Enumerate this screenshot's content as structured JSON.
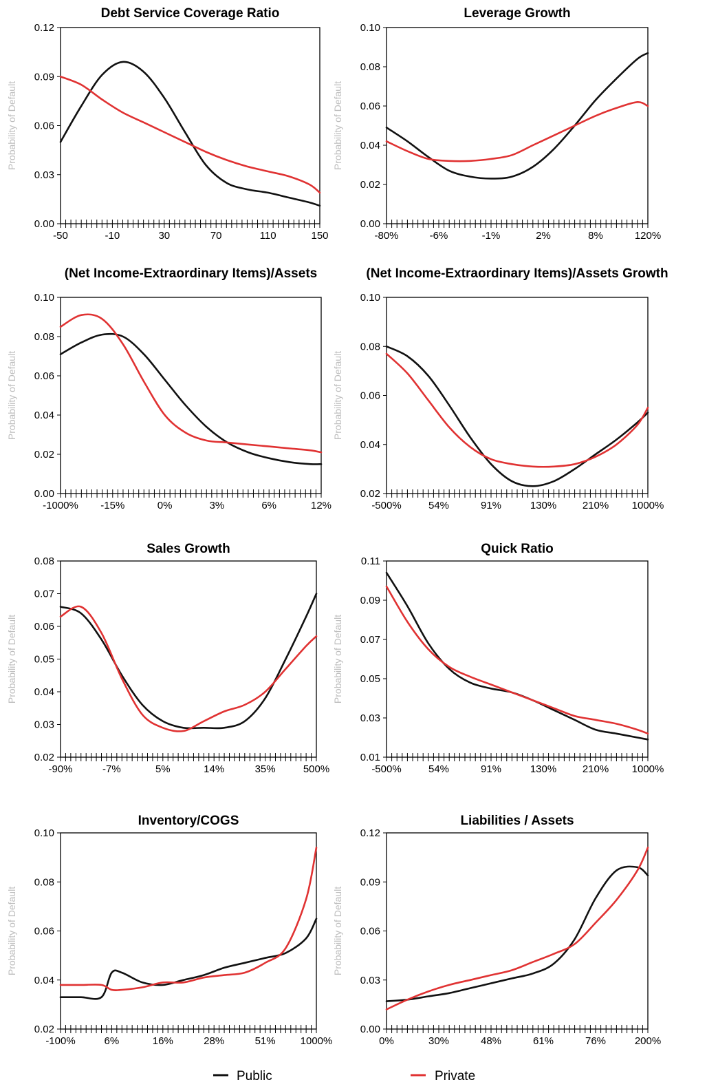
{
  "legend": {
    "public_label": "Public",
    "private_label": "Private"
  },
  "colors": {
    "public": "#111111",
    "private": "#e03232",
    "axis_label": "#bdbdbd"
  },
  "chart_data": [
    {
      "type": "line",
      "title": "Debt Service Coverage Ratio",
      "ylabel": "Probability of Default",
      "ylim": [
        0,
        0.12
      ],
      "yticks": [
        "0.00",
        "0.03",
        "0.06",
        "0.09",
        "0.12"
      ],
      "xticks": [
        "-50",
        "-10",
        "30",
        "70",
        "110",
        "150"
      ],
      "x": [
        0,
        0.08,
        0.16,
        0.24,
        0.32,
        0.4,
        0.48,
        0.56,
        0.64,
        0.72,
        0.8,
        0.88,
        0.96,
        1
      ],
      "series": [
        {
          "name": "Public",
          "values": [
            0.05,
            0.072,
            0.091,
            0.099,
            0.093,
            0.077,
            0.056,
            0.036,
            0.025,
            0.021,
            0.019,
            0.016,
            0.013,
            0.011
          ]
        },
        {
          "name": "Private",
          "values": [
            0.09,
            0.085,
            0.076,
            0.068,
            0.062,
            0.056,
            0.05,
            0.044,
            0.039,
            0.035,
            0.032,
            0.029,
            0.024,
            0.019
          ]
        }
      ]
    },
    {
      "type": "line",
      "title": "Leverage Growth",
      "ylabel": "Probability of Default",
      "ylim": [
        0,
        0.1
      ],
      "yticks": [
        "0.00",
        "0.02",
        "0.04",
        "0.06",
        "0.08",
        "0.10"
      ],
      "xticks": [
        "-80%",
        "-6%",
        "-1%",
        "2%",
        "8%",
        "120%"
      ],
      "x": [
        0,
        0.08,
        0.16,
        0.24,
        0.32,
        0.4,
        0.48,
        0.56,
        0.64,
        0.72,
        0.8,
        0.88,
        0.96,
        1
      ],
      "series": [
        {
          "name": "Public",
          "values": [
            0.049,
            0.042,
            0.034,
            0.027,
            0.024,
            0.023,
            0.024,
            0.029,
            0.038,
            0.05,
            0.063,
            0.074,
            0.084,
            0.087
          ]
        },
        {
          "name": "Private",
          "values": [
            0.042,
            0.037,
            0.033,
            0.032,
            0.032,
            0.033,
            0.035,
            0.04,
            0.045,
            0.05,
            0.055,
            0.059,
            0.062,
            0.06
          ]
        }
      ]
    },
    {
      "type": "line",
      "title": "(Net Income-Extraordinary Items)/Assets",
      "ylabel": "Probability of Default",
      "ylim": [
        0,
        0.1
      ],
      "yticks": [
        "0.00",
        "0.02",
        "0.04",
        "0.06",
        "0.08",
        "0.10"
      ],
      "xticks": [
        "-1000%",
        "-15%",
        "0%",
        "3%",
        "6%",
        "12%"
      ],
      "x": [
        0,
        0.08,
        0.16,
        0.24,
        0.32,
        0.4,
        0.48,
        0.56,
        0.64,
        0.72,
        0.8,
        0.88,
        0.96,
        1
      ],
      "series": [
        {
          "name": "Public",
          "values": [
            0.071,
            0.077,
            0.081,
            0.08,
            0.071,
            0.058,
            0.045,
            0.034,
            0.026,
            0.021,
            0.018,
            0.016,
            0.015,
            0.015
          ]
        },
        {
          "name": "Private",
          "values": [
            0.085,
            0.091,
            0.089,
            0.076,
            0.057,
            0.04,
            0.031,
            0.027,
            0.026,
            0.025,
            0.024,
            0.023,
            0.022,
            0.021
          ]
        }
      ]
    },
    {
      "type": "line",
      "title": "(Net Income-Extraordinary Items)/Assets Growth",
      "ylabel": "Probability of Default",
      "ylim": [
        0.02,
        0.1
      ],
      "yticks": [
        "0.02",
        "0.04",
        "0.06",
        "0.08",
        "0.10"
      ],
      "xticks": [
        "-500%",
        "54%",
        "91%",
        "130%",
        "210%",
        "1000%"
      ],
      "x": [
        0,
        0.08,
        0.16,
        0.24,
        0.32,
        0.4,
        0.48,
        0.56,
        0.64,
        0.72,
        0.8,
        0.88,
        0.96,
        1
      ],
      "series": [
        {
          "name": "Public",
          "values": [
            0.08,
            0.076,
            0.068,
            0.056,
            0.043,
            0.032,
            0.025,
            0.023,
            0.025,
            0.03,
            0.036,
            0.042,
            0.049,
            0.053
          ]
        },
        {
          "name": "Private",
          "values": [
            0.077,
            0.069,
            0.058,
            0.047,
            0.039,
            0.034,
            0.032,
            0.031,
            0.031,
            0.032,
            0.035,
            0.04,
            0.048,
            0.055
          ]
        }
      ]
    },
    {
      "type": "line",
      "title": "Sales Growth",
      "ylabel": "Probability of Default",
      "ylim": [
        0.02,
        0.08
      ],
      "yticks": [
        "0.02",
        "0.03",
        "0.04",
        "0.05",
        "0.06",
        "0.07",
        "0.08"
      ],
      "xticks": [
        "-90%",
        "-7%",
        "5%",
        "14%",
        "35%",
        "500%"
      ],
      "x": [
        0,
        0.08,
        0.16,
        0.24,
        0.32,
        0.4,
        0.48,
        0.56,
        0.64,
        0.72,
        0.8,
        0.88,
        0.96,
        1
      ],
      "series": [
        {
          "name": "Public",
          "values": [
            0.066,
            0.064,
            0.056,
            0.045,
            0.036,
            0.031,
            0.029,
            0.029,
            0.029,
            0.031,
            0.038,
            0.05,
            0.063,
            0.07
          ]
        },
        {
          "name": "Private",
          "values": [
            0.063,
            0.066,
            0.058,
            0.044,
            0.033,
            0.029,
            0.028,
            0.031,
            0.034,
            0.036,
            0.04,
            0.047,
            0.054,
            0.057
          ]
        }
      ]
    },
    {
      "type": "line",
      "title": "Quick Ratio",
      "ylabel": "Probability of Default",
      "ylim": [
        0.01,
        0.11
      ],
      "yticks": [
        "0.01",
        "0.03",
        "0.05",
        "0.07",
        "0.09",
        "0.11"
      ],
      "xticks": [
        "-500%",
        "54%",
        "91%",
        "130%",
        "210%",
        "1000%"
      ],
      "x": [
        0,
        0.08,
        0.16,
        0.24,
        0.32,
        0.4,
        0.48,
        0.56,
        0.64,
        0.72,
        0.8,
        0.88,
        0.96,
        1
      ],
      "series": [
        {
          "name": "Public",
          "values": [
            0.104,
            0.087,
            0.068,
            0.055,
            0.048,
            0.045,
            0.043,
            0.039,
            0.034,
            0.029,
            0.024,
            0.022,
            0.02,
            0.019
          ]
        },
        {
          "name": "Private",
          "values": [
            0.097,
            0.079,
            0.065,
            0.056,
            0.051,
            0.047,
            0.043,
            0.039,
            0.035,
            0.031,
            0.029,
            0.027,
            0.024,
            0.022
          ]
        }
      ]
    },
    {
      "type": "line",
      "title": "Inventory/COGS",
      "ylabel": "Probability of Default",
      "ylim": [
        0.02,
        0.1
      ],
      "yticks": [
        "0.02",
        "0.04",
        "0.06",
        "0.08",
        "0.10"
      ],
      "xticks": [
        "-100%",
        "6%",
        "16%",
        "28%",
        "51%",
        "1000%"
      ],
      "x": [
        0,
        0.08,
        0.16,
        0.2,
        0.24,
        0.32,
        0.4,
        0.48,
        0.56,
        0.64,
        0.72,
        0.8,
        0.88,
        0.96,
        1
      ],
      "series": [
        {
          "name": "Public",
          "values": [
            0.033,
            0.033,
            0.033,
            0.043,
            0.043,
            0.039,
            0.038,
            0.04,
            0.042,
            0.045,
            0.047,
            0.049,
            0.051,
            0.057,
            0.065
          ]
        },
        {
          "name": "Private",
          "values": [
            0.038,
            0.038,
            0.038,
            0.036,
            0.036,
            0.037,
            0.039,
            0.039,
            0.041,
            0.042,
            0.043,
            0.047,
            0.053,
            0.073,
            0.094
          ]
        }
      ]
    },
    {
      "type": "line",
      "title": "Liabilities / Assets",
      "ylabel": "Probability of Default",
      "ylim": [
        0,
        0.12
      ],
      "yticks": [
        "0.00",
        "0.03",
        "0.06",
        "0.09",
        "0.12"
      ],
      "xticks": [
        "0%",
        "30%",
        "48%",
        "61%",
        "76%",
        "200%"
      ],
      "x": [
        0,
        0.08,
        0.16,
        0.24,
        0.32,
        0.4,
        0.48,
        0.56,
        0.64,
        0.72,
        0.8,
        0.88,
        0.96,
        1
      ],
      "series": [
        {
          "name": "Public",
          "values": [
            0.017,
            0.018,
            0.02,
            0.022,
            0.025,
            0.028,
            0.031,
            0.034,
            0.04,
            0.055,
            0.08,
            0.097,
            0.099,
            0.094
          ]
        },
        {
          "name": "Private",
          "values": [
            0.012,
            0.018,
            0.023,
            0.027,
            0.03,
            0.033,
            0.036,
            0.041,
            0.046,
            0.052,
            0.065,
            0.079,
            0.097,
            0.111
          ]
        }
      ]
    }
  ]
}
